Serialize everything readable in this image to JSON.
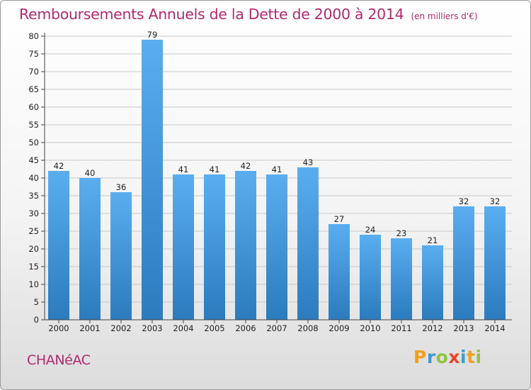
{
  "chart_data": {
    "type": "bar",
    "title": "Remboursements Annuels de la Dette de 2000 à 2014",
    "subtitle": "(en milliers d'€)",
    "categories": [
      "2000",
      "2001",
      "2002",
      "2003",
      "2004",
      "2005",
      "2006",
      "2007",
      "2008",
      "2009",
      "2010",
      "2011",
      "2012",
      "2013",
      "2014"
    ],
    "values": [
      42,
      40,
      36,
      79,
      41,
      41,
      42,
      41,
      43,
      27,
      24,
      23,
      21,
      32,
      32
    ],
    "ylim": [
      0,
      80
    ],
    "yticks": [
      0,
      5,
      10,
      15,
      20,
      25,
      30,
      35,
      40,
      45,
      50,
      55,
      60,
      65,
      70,
      75,
      80
    ],
    "grid": "horizontal",
    "bar_color_top": "#5aaef0",
    "bar_color_bottom": "#2b7bbd"
  },
  "footer": {
    "town": "CHANéAC",
    "logo_letters": [
      "P",
      "r",
      "o",
      "x",
      "i",
      "t",
      "i"
    ],
    "logo_colors": [
      "#f0a020",
      "#3a9bd5",
      "#8cc63f",
      "#e8452c",
      "#3a9bd5",
      "#f0a020",
      "#8cc63f"
    ]
  },
  "colors": {
    "title": "#b02a6e",
    "grid": "#c8c8c8"
  }
}
